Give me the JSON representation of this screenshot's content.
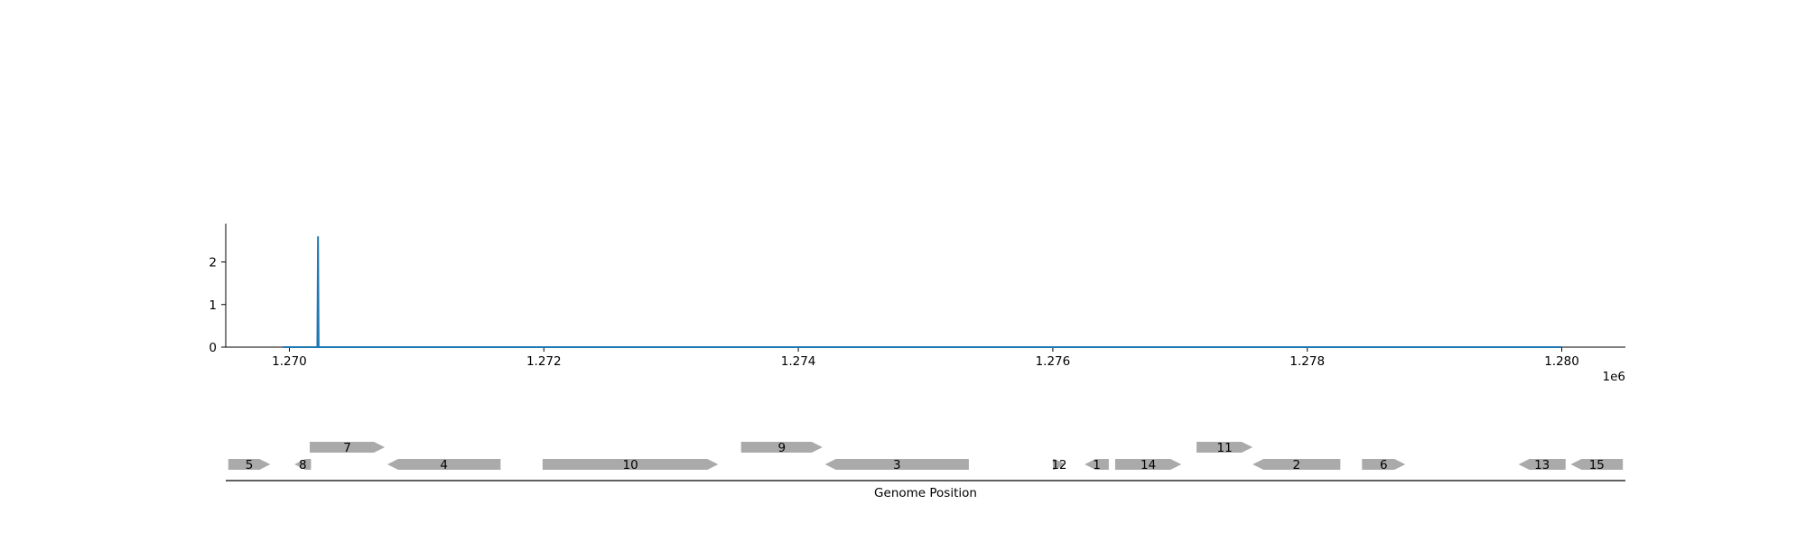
{
  "chart_data": [
    {
      "type": "line",
      "series": [
        {
          "color": "#1f77b4",
          "points": [
            [
              1269950,
              0
            ],
            [
              1270220,
              0
            ],
            [
              1270225,
              2.6
            ],
            [
              1270230,
              0
            ],
            [
              1280000,
              0
            ]
          ]
        }
      ],
      "xlim": [
        1269500,
        1280500
      ],
      "ylim": [
        0,
        2.9
      ],
      "x_ticks": [
        1270000,
        1272000,
        1274000,
        1276000,
        1278000,
        1280000
      ],
      "x_tick_labels": [
        "1.270",
        "1.272",
        "1.274",
        "1.276",
        "1.278",
        "1.280"
      ],
      "x_offset_label": "1e6",
      "y_ticks": [
        0,
        1,
        2
      ],
      "y_tick_labels": [
        "0",
        "1",
        "2"
      ],
      "spines": "left-bottom",
      "grid": false
    },
    {
      "type": "gene-track",
      "xlabel": "Genome Position",
      "feature_color": "#aaaaaa",
      "features": [
        {
          "label": "5",
          "start": 1269520,
          "end": 1269850,
          "strand": 1,
          "row": 0
        },
        {
          "label": "8",
          "start": 1270040,
          "end": 1270170,
          "strand": -1,
          "row": 0
        },
        {
          "label": "7",
          "start": 1270160,
          "end": 1270750,
          "strand": 1,
          "row": 1
        },
        {
          "label": "4",
          "start": 1270770,
          "end": 1271660,
          "strand": -1,
          "row": 0
        },
        {
          "label": "10",
          "start": 1271990,
          "end": 1273370,
          "strand": 1,
          "row": 0
        },
        {
          "label": "9",
          "start": 1273550,
          "end": 1274190,
          "strand": 1,
          "row": 1
        },
        {
          "label": "3",
          "start": 1274210,
          "end": 1275340,
          "strand": -1,
          "row": 0
        },
        {
          "label": "12",
          "start": 1276000,
          "end": 1276100,
          "strand": 1,
          "row": 0
        },
        {
          "label": "1",
          "start": 1276250,
          "end": 1276440,
          "strand": -1,
          "row": 0
        },
        {
          "label": "14",
          "start": 1276490,
          "end": 1277010,
          "strand": 1,
          "row": 0
        },
        {
          "label": "11",
          "start": 1277130,
          "end": 1277570,
          "strand": 1,
          "row": 1
        },
        {
          "label": "2",
          "start": 1277570,
          "end": 1278260,
          "strand": -1,
          "row": 0
        },
        {
          "label": "6",
          "start": 1278430,
          "end": 1278770,
          "strand": 1,
          "row": 0
        },
        {
          "label": "13",
          "start": 1279660,
          "end": 1280030,
          "strand": -1,
          "row": 0
        },
        {
          "label": "15",
          "start": 1280070,
          "end": 1280480,
          "strand": -1,
          "row": 0
        }
      ]
    }
  ]
}
